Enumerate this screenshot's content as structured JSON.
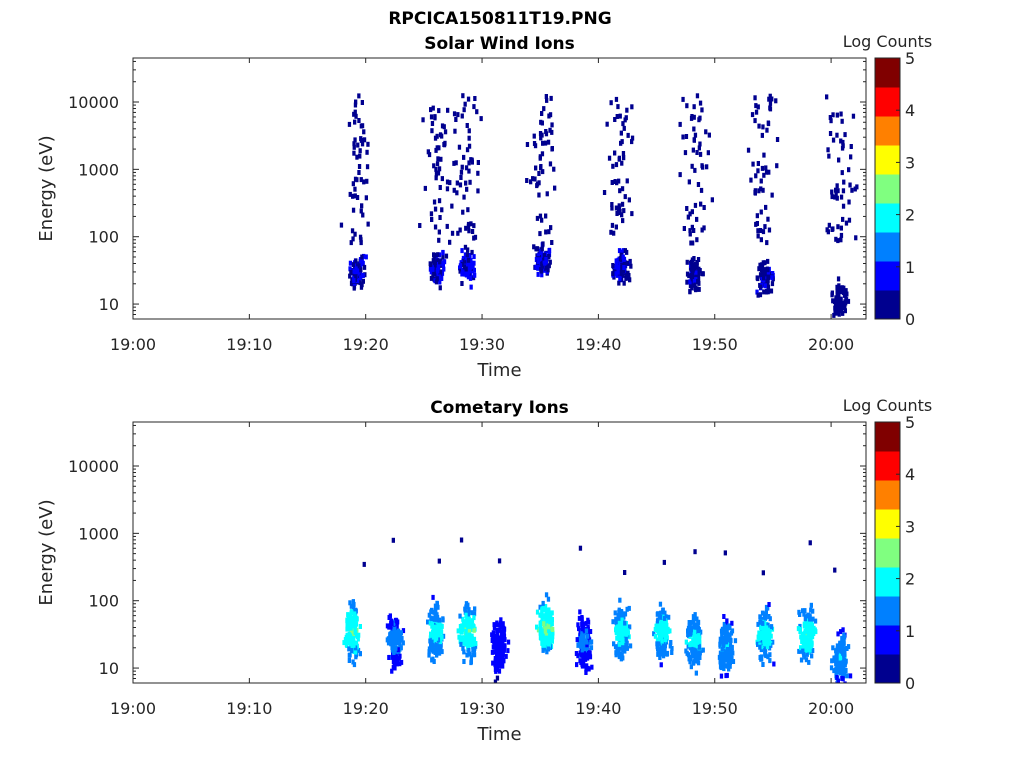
{
  "figure": {
    "title": "RPCICA150811T19.PNG"
  },
  "colormap": [
    "#00008f",
    "#0000ff",
    "#0080ff",
    "#00ffff",
    "#80ff80",
    "#ffff00",
    "#ff8000",
    "#ff0000",
    "#800000"
  ],
  "chart_data": [
    {
      "type": "heatmap",
      "title": "Solar Wind Ions",
      "xlabel": "Time",
      "ylabel": "Energy (eV)",
      "x_ticks": [
        "19:00",
        "19:10",
        "19:20",
        "19:30",
        "19:40",
        "19:50",
        "20:00"
      ],
      "x_range_minutes": [
        0,
        63
      ],
      "y_scale": "log",
      "y_ticks": [
        "10",
        "100",
        "1000",
        "10000"
      ],
      "y_range_eV": [
        6,
        45000
      ],
      "colorbar": {
        "label": "Log Counts",
        "range": [
          0,
          5
        ],
        "ticks": [
          "0",
          "1",
          "2",
          "3",
          "4",
          "5"
        ]
      },
      "cores": [
        {
          "t": 19.3,
          "e": 30,
          "log_counts": 0.6
        },
        {
          "t": 26.2,
          "e": 35,
          "log_counts": 0.6
        },
        {
          "t": 28.7,
          "e": 35,
          "log_counts": 0.7
        },
        {
          "t": 35.2,
          "e": 45,
          "log_counts": 0.6
        },
        {
          "t": 42.0,
          "e": 35,
          "log_counts": 0.6
        },
        {
          "t": 48.3,
          "e": 25,
          "log_counts": 0.5
        },
        {
          "t": 54.3,
          "e": 25,
          "log_counts": 0.5
        },
        {
          "t": 60.8,
          "e": 12,
          "log_counts": 0.4
        }
      ]
    },
    {
      "type": "heatmap",
      "title": "Cometary Ions",
      "xlabel": "Time",
      "ylabel": "Energy (eV)",
      "x_ticks": [
        "19:00",
        "19:10",
        "19:20",
        "19:30",
        "19:40",
        "19:50",
        "20:00"
      ],
      "x_range_minutes": [
        0,
        63
      ],
      "y_scale": "log",
      "y_ticks": [
        "10",
        "100",
        "1000",
        "10000"
      ],
      "y_range_eV": [
        6,
        45000
      ],
      "colorbar": {
        "label": "Log Counts",
        "range": [
          0,
          5
        ],
        "ticks": [
          "0",
          "1",
          "2",
          "3",
          "4",
          "5"
        ]
      },
      "bursts": [
        {
          "t": 18.8,
          "e": 35,
          "log_counts": 2.3
        },
        {
          "t": 22.5,
          "e": 25,
          "log_counts": 1.4
        },
        {
          "t": 26.0,
          "e": 35,
          "log_counts": 2.0
        },
        {
          "t": 28.8,
          "e": 35,
          "log_counts": 2.3
        },
        {
          "t": 31.5,
          "e": 20,
          "log_counts": 1.0
        },
        {
          "t": 35.5,
          "e": 40,
          "log_counts": 2.4
        },
        {
          "t": 38.8,
          "e": 25,
          "log_counts": 1.3
        },
        {
          "t": 42.0,
          "e": 35,
          "log_counts": 2.0
        },
        {
          "t": 45.5,
          "e": 35,
          "log_counts": 2.0
        },
        {
          "t": 48.3,
          "e": 25,
          "log_counts": 1.9
        },
        {
          "t": 51.0,
          "e": 20,
          "log_counts": 1.7
        },
        {
          "t": 54.3,
          "e": 30,
          "log_counts": 2.0
        },
        {
          "t": 58.0,
          "e": 30,
          "log_counts": 2.2
        },
        {
          "t": 60.8,
          "e": 15,
          "log_counts": 1.7
        }
      ]
    }
  ]
}
